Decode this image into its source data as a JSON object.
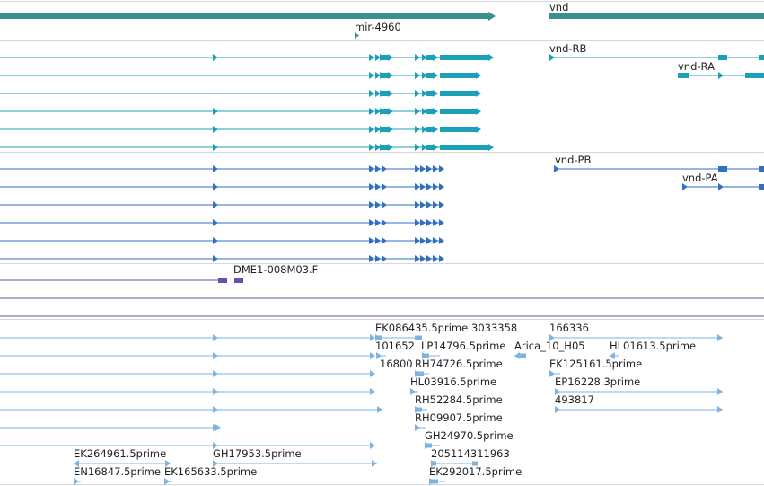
{
  "colors": {
    "gene": "#3a8f8f",
    "transcript": "#1aa0b8",
    "protein": "#2f6fc4",
    "clone": "#6a4fa8",
    "est": "#7fb4e0",
    "divider": "#cfcfcf",
    "label": "#222222"
  },
  "tracks": {
    "genes": {
      "labels": [
        "mir-4960",
        "vnd"
      ]
    },
    "transcripts": {
      "labels": [
        "vnd-RB",
        "vnd-RA"
      ]
    },
    "proteins": {
      "labels": [
        "vnd-PB",
        "vnd-PA"
      ]
    },
    "clones": {
      "labels": [
        "DME1-008M03.F"
      ]
    },
    "ests": {
      "labels": [
        "EK086435.5prime",
        "3033358",
        "166336",
        "101652",
        "LP14796.5prime",
        "Arica_10_H05",
        "HL01613.5prime",
        "16800",
        "RH74726.5prime",
        "EK125161.5prime",
        "HL03916.5prime",
        "EP16228.3prime",
        "RH52284.5prime",
        "493817",
        "RH09907.5prime",
        "GH24970.5prime",
        "EK264961.5prime",
        "GH17953.5prime",
        "205114311963",
        "EN16847.5prime",
        "EK165633.5prime",
        "EK292017.5prime"
      ]
    }
  }
}
